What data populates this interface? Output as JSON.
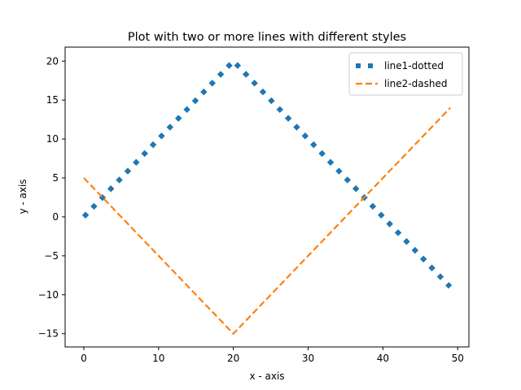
{
  "chart_data": {
    "type": "line",
    "title": "Plot with two or more lines with different styles",
    "xlabel": "x - axis",
    "ylabel": "y - axis",
    "xlim": [
      -2.5,
      51.5
    ],
    "ylim": [
      -16.7,
      21.8
    ],
    "xticks": [
      0,
      10,
      20,
      30,
      40,
      50
    ],
    "yticks": [
      -15,
      -10,
      -5,
      0,
      5,
      10,
      15,
      20
    ],
    "legend": "top-right",
    "grid": false,
    "series": [
      {
        "name": "line1-dotted",
        "style": "dotted",
        "color": "#1f77b4",
        "x": [
          0,
          20,
          49
        ],
        "y": [
          0,
          20,
          -9
        ]
      },
      {
        "name": "line2-dashed",
        "style": "dashed",
        "color": "#ff7f0e",
        "x": [
          0,
          20,
          49
        ],
        "y": [
          5,
          -15,
          14
        ]
      }
    ]
  }
}
